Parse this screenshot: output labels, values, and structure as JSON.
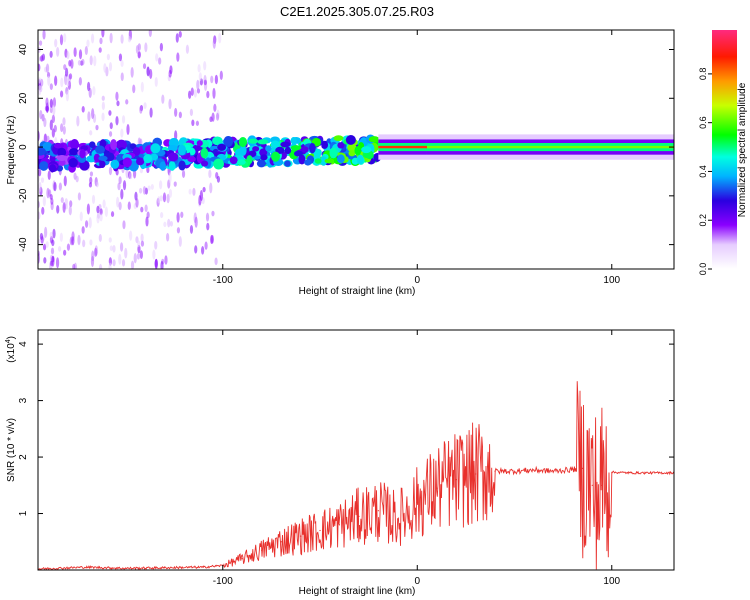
{
  "title": "C2E1.2025.305.07.25.R03",
  "colors": {
    "axis": "#000000",
    "snr_line": "#e8302c"
  },
  "chart_data": [
    {
      "type": "heatmap",
      "id": "spectrogram",
      "xlabel": "Height of straight line (km)",
      "ylabel": "Frequency (Hz)",
      "xlim": [
        -195,
        132
      ],
      "ylim": [
        -50,
        48
      ],
      "xticks": [
        -100,
        0,
        100
      ],
      "yticks": [
        -40,
        -20,
        0,
        20,
        40
      ],
      "colorbar": {
        "label": "Normalized spectral amplitude",
        "range": [
          0,
          0.98
        ],
        "ticks": [
          0.0,
          0.2,
          0.4,
          0.6,
          0.8
        ],
        "tick_labels": [
          "0.0",
          "0.2",
          "0.4",
          "0.6",
          "0.8"
        ],
        "stops": [
          {
            "v": 0.0,
            "color": "#ffffff"
          },
          {
            "v": 0.1,
            "color": "#e6ccff"
          },
          {
            "v": 0.18,
            "color": "#8a00ff"
          },
          {
            "v": 0.28,
            "color": "#2a00e0"
          },
          {
            "v": 0.38,
            "color": "#00b4ff"
          },
          {
            "v": 0.46,
            "color": "#00ffe0"
          },
          {
            "v": 0.55,
            "color": "#00ff00"
          },
          {
            "v": 0.67,
            "color": "#c8ff00"
          },
          {
            "v": 0.77,
            "color": "#ff9a00"
          },
          {
            "v": 0.87,
            "color": "#ff1a00"
          },
          {
            "v": 0.98,
            "color": "#ff2a7f"
          }
        ]
      },
      "segments": [
        {
          "x_start": -195,
          "x_end": -20,
          "center_hz": -4,
          "spread_hz": 5,
          "level": 0.35,
          "style": "noisy"
        },
        {
          "x_start": -20,
          "x_end": 5,
          "center_hz": 0,
          "spread_hz": 2,
          "level": 0.85,
          "style": "steady"
        },
        {
          "x_start": 5,
          "x_end": 132,
          "center_hz": 0,
          "spread_hz": 2,
          "level": 0.62,
          "style": "steady"
        }
      ]
    },
    {
      "type": "line",
      "id": "snr",
      "xlabel": "Height of straight line (km)",
      "ylabel": "SNR (10 * v/v)",
      "y_scale_label": "(x10",
      "y_scale_exp": "4",
      "y_scale_close": ")",
      "xlim": [
        -195,
        132
      ],
      "ylim": [
        0,
        4.25
      ],
      "xticks": [
        -100,
        0,
        100
      ],
      "yticks": [
        1,
        2,
        3,
        4
      ],
      "x": [
        -195,
        -170,
        -150,
        -130,
        -110,
        -100,
        -90,
        -80,
        -70,
        -60,
        -50,
        -40,
        -30,
        -20,
        -10,
        0,
        10,
        20,
        30,
        40,
        50,
        60,
        70,
        80,
        85,
        90,
        93,
        95,
        100,
        110,
        120,
        132
      ],
      "y": [
        0.02,
        0.05,
        0.03,
        0.04,
        0.05,
        0.08,
        0.2,
        0.35,
        0.5,
        0.6,
        0.7,
        0.8,
        0.95,
        1.05,
        0.9,
        1.2,
        1.45,
        1.6,
        1.7,
        1.75,
        1.75,
        1.77,
        1.75,
        1.78,
        1.8,
        1.5,
        1.2,
        1.5,
        1.73,
        1.72,
        1.72,
        1.72
      ]
    }
  ]
}
